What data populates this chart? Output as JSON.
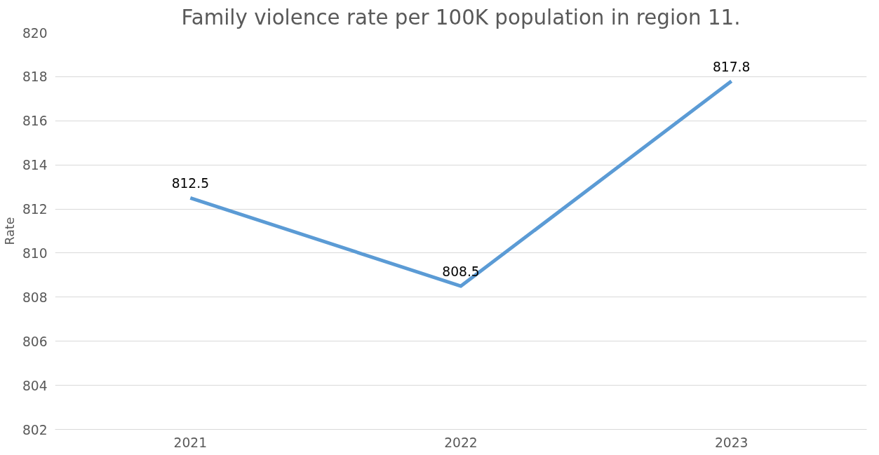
{
  "chart_data": {
    "type": "line",
    "title": "Family violence rate per 100K population in region 11.",
    "ylabel": "Rate",
    "categories": [
      "2021",
      "2022",
      "2023"
    ],
    "series": [
      {
        "color": "#5b9bd5",
        "values": [
          812.5,
          808.5,
          817.8
        ]
      }
    ],
    "ylim": [
      802,
      820
    ],
    "yticks": [
      802,
      804,
      806,
      808,
      810,
      812,
      814,
      816,
      818,
      820
    ],
    "grid": "y",
    "data_labels": true,
    "marker": "none",
    "line_style": "solid"
  }
}
